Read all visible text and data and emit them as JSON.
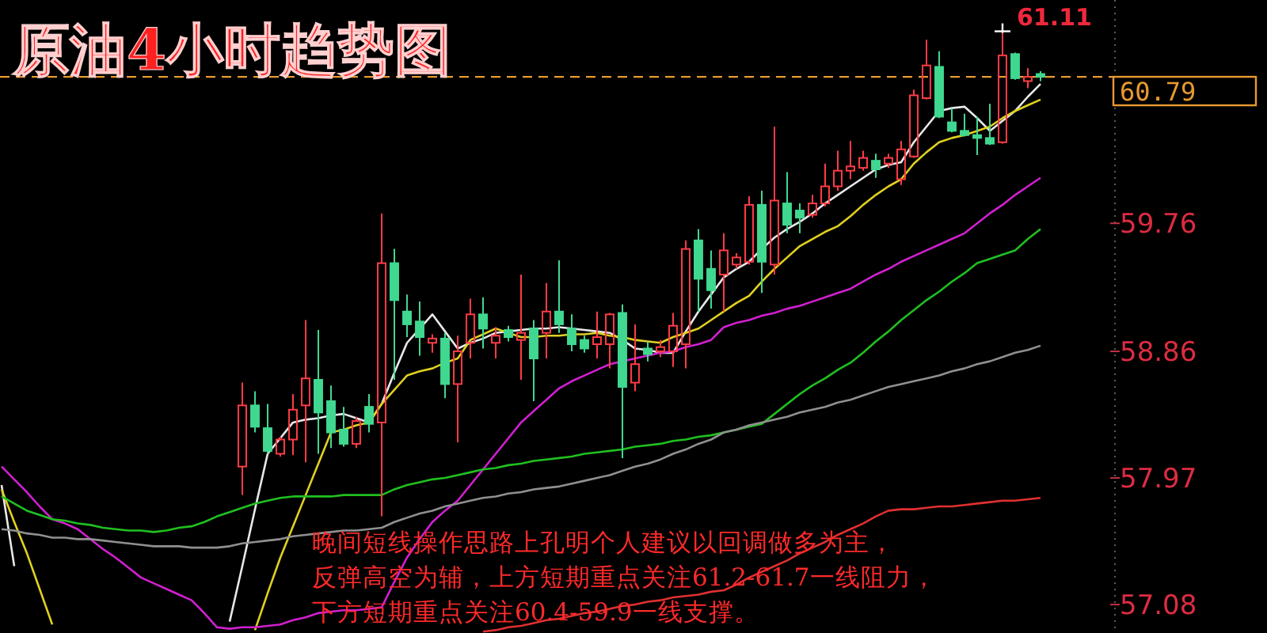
{
  "chart_data": {
    "type": "candlestick",
    "title": "原油4小时趋势图",
    "categories": [
      null,
      null,
      null,
      null,
      null,
      null,
      null,
      null,
      null,
      null,
      null,
      null,
      null,
      null,
      null,
      null,
      null,
      null,
      null,
      null,
      null,
      null,
      null,
      null,
      null,
      null,
      null,
      null,
      null,
      null,
      null,
      null,
      null,
      null,
      null,
      null,
      null,
      null,
      null,
      null,
      null,
      null,
      null,
      null,
      null,
      null,
      null,
      null,
      null,
      null,
      null,
      null,
      null,
      null,
      null,
      null,
      null,
      null,
      null,
      null,
      null,
      null,
      null,
      null,
      null,
      null,
      null,
      null,
      null,
      null,
      null,
      null,
      null,
      null,
      null,
      null,
      null,
      null,
      null,
      null,
      null,
      null,
      null
    ],
    "ohlc": [
      null,
      null,
      null,
      null,
      null,
      null,
      null,
      null,
      null,
      null,
      null,
      null,
      null,
      null,
      null,
      null,
      null,
      null,
      null,
      [
        58.05,
        58.64,
        57.85,
        58.48
      ],
      [
        58.48,
        58.58,
        58.29,
        58.33
      ],
      [
        58.32,
        58.49,
        58.14,
        58.16
      ],
      [
        58.14,
        58.26,
        58.12,
        58.24
      ],
      [
        58.24,
        58.56,
        58.13,
        58.45
      ],
      [
        58.48,
        59.08,
        58.08,
        58.67
      ],
      [
        58.66,
        59.01,
        58.14,
        58.43
      ],
      [
        58.51,
        58.62,
        58.18,
        58.29
      ],
      [
        58.31,
        58.47,
        58.19,
        58.21
      ],
      [
        58.21,
        58.4,
        58.18,
        58.37
      ],
      [
        58.47,
        58.56,
        58.29,
        58.35
      ],
      [
        58.36,
        59.83,
        57.7,
        59.48
      ],
      [
        59.48,
        59.58,
        58.66,
        59.22
      ],
      [
        59.14,
        59.26,
        58.96,
        59.05
      ],
      [
        59.07,
        59.21,
        58.83,
        58.96
      ],
      [
        58.92,
        58.98,
        58.85,
        58.95
      ],
      [
        58.95,
        58.99,
        58.53,
        58.63
      ],
      [
        58.63,
        58.97,
        58.22,
        58.86
      ],
      [
        58.92,
        59.23,
        58.81,
        59.12
      ],
      [
        59.12,
        59.24,
        58.88,
        59.02
      ],
      [
        58.92,
        59.03,
        58.81,
        58.97
      ],
      [
        59.01,
        59.04,
        58.93,
        58.96
      ],
      [
        58.94,
        59.4,
        58.66,
        58.99
      ],
      [
        59.02,
        59.08,
        58.51,
        58.81
      ],
      [
        58.99,
        59.34,
        58.81,
        59.14
      ],
      [
        59.14,
        59.5,
        58.99,
        59.05
      ],
      [
        59.02,
        59.12,
        58.86,
        58.91
      ],
      [
        58.94,
        58.97,
        58.85,
        58.88
      ],
      [
        58.91,
        59.14,
        58.81,
        58.96
      ],
      [
        58.91,
        59.13,
        58.74,
        59.12
      ],
      [
        59.13,
        59.19,
        58.11,
        58.61
      ],
      [
        58.64,
        59.05,
        58.58,
        58.77
      ],
      [
        58.88,
        58.93,
        58.79,
        58.84
      ],
      [
        58.86,
        58.94,
        58.82,
        58.89
      ],
      [
        58.86,
        59.13,
        58.75,
        59.04
      ],
      [
        58.91,
        59.64,
        58.74,
        59.58
      ],
      [
        59.64,
        59.72,
        59.14,
        59.37
      ],
      [
        59.44,
        59.57,
        59.16,
        59.29
      ],
      [
        59.4,
        59.69,
        59.14,
        59.57
      ],
      [
        59.47,
        59.55,
        59.44,
        59.52
      ],
      [
        59.49,
        59.95,
        59.47,
        59.89
      ],
      [
        59.89,
        59.99,
        59.27,
        59.49
      ],
      [
        59.47,
        60.44,
        59.4,
        59.92
      ],
      [
        59.9,
        60.12,
        59.69,
        59.75
      ],
      [
        59.85,
        59.9,
        59.69,
        59.8
      ],
      [
        59.82,
        59.96,
        59.8,
        59.9
      ],
      [
        59.9,
        60.18,
        59.88,
        60.02
      ],
      [
        60.02,
        60.27,
        59.99,
        60.13
      ],
      [
        60.13,
        60.34,
        60.07,
        60.16
      ],
      [
        60.15,
        60.27,
        60.13,
        60.22
      ],
      [
        60.2,
        60.25,
        60.08,
        60.14
      ],
      [
        60.18,
        60.25,
        60.15,
        60.22
      ],
      [
        60.07,
        60.34,
        60.03,
        60.28
      ],
      [
        60.23,
        60.7,
        60.22,
        60.66
      ],
      [
        60.64,
        61.05,
        60.63,
        60.87
      ],
      [
        60.86,
        60.97,
        60.5,
        60.51
      ],
      [
        60.47,
        60.57,
        60.4,
        60.41
      ],
      [
        60.41,
        60.53,
        60.37,
        60.38
      ],
      [
        60.38,
        60.51,
        60.24,
        60.36
      ],
      [
        60.36,
        60.6,
        60.31,
        60.32
      ],
      [
        60.33,
        61.11,
        60.32,
        60.94
      ],
      [
        60.95,
        60.96,
        60.77,
        60.78
      ],
      [
        60.76,
        60.85,
        60.71,
        60.79
      ],
      [
        60.81,
        60.83,
        60.76,
        60.79
      ]
    ],
    "colors": [
      null,
      null,
      null,
      null,
      null,
      null,
      null,
      null,
      null,
      null,
      null,
      null,
      null,
      null,
      null,
      null,
      null,
      null,
      null,
      "#ff3c46",
      "#40d890",
      "#40d890",
      "#ff3c46",
      "#ff3c46",
      "#ff3c46",
      "#40d890",
      "#40d890",
      "#40d890",
      "#ff3c46",
      "#40d890",
      "#ff3c46",
      "#40d890",
      "#40d890",
      "#40d890",
      "#ff3c46",
      "#40d890",
      "#ff3c46",
      "#ff3c46",
      "#40d890",
      "#ff3c46",
      "#40d890",
      "#ff3c46",
      "#40d890",
      "#ff3c46",
      "#40d890",
      "#40d890",
      "#40d890",
      "#ff3c46",
      "#ff3c46",
      "#40d890",
      "#ff3c46",
      "#40d890",
      "#ff3c46",
      "#ff3c46",
      "#ff3c46",
      "#40d890",
      "#40d890",
      "#ff3c46",
      "#ff3c46",
      "#ff3c46",
      "#40d890",
      "#ff3c46",
      "#40d890",
      "#40d890",
      "#ff3c46",
      "#ff3c46",
      "#ff3c46",
      "#ff3c46",
      "#ff3c46",
      "#40d890",
      "#ff3c46",
      "#ff3c46",
      "#ff3c46",
      "#ff3c46",
      "#40d890",
      "#40d890",
      "#40d890",
      "#40d890",
      "#40d890",
      "#ff3c46",
      "#40d890",
      "#ff3c46",
      "#40d890"
    ],
    "series": [
      {
        "type": "line",
        "color": "#e8e8e8",
        "values": [
          57.92,
          57.35,
          null,
          null,
          null,
          null,
          null,
          null,
          null,
          null,
          null,
          null,
          null,
          null,
          null,
          null,
          null,
          null,
          56.96,
          57.35,
          57.75,
          58.14,
          58.25,
          58.36,
          58.38,
          58.39,
          58.41,
          58.42,
          58.39,
          58.36,
          58.49,
          58.71,
          58.92,
          59.02,
          59.12,
          59.0,
          58.88,
          58.92,
          58.95,
          58.99,
          59.0,
          59.01,
          59.02,
          59.02,
          59.03,
          59.02,
          59.01,
          59.0,
          58.99,
          58.94,
          58.88,
          58.87,
          58.85,
          58.85,
          59.0,
          59.14,
          59.26,
          59.38,
          59.44,
          59.49,
          59.58,
          59.66,
          59.72,
          59.77,
          59.83,
          59.9,
          59.96,
          60.02,
          60.08,
          60.14,
          60.17,
          60.19,
          60.33,
          60.44,
          60.55,
          60.57,
          60.58,
          60.5,
          60.41,
          60.48,
          60.55,
          60.65,
          60.74
        ]
      },
      {
        "type": "line",
        "color": "#e0d020",
        "values": [
          57.89,
          57.66,
          57.44,
          57.19,
          56.94,
          null,
          null,
          null,
          null,
          null,
          null,
          null,
          null,
          null,
          null,
          null,
          null,
          null,
          null,
          null,
          56.9,
          57.16,
          57.41,
          57.63,
          57.85,
          58.07,
          58.29,
          58.31,
          58.34,
          58.36,
          58.49,
          58.59,
          58.69,
          58.72,
          58.74,
          58.78,
          58.81,
          58.94,
          58.98,
          59.02,
          58.99,
          58.96,
          58.96,
          58.97,
          58.97,
          58.98,
          58.98,
          58.99,
          58.97,
          58.96,
          58.94,
          58.93,
          58.92,
          58.96,
          58.99,
          59.02,
          59.08,
          59.14,
          59.2,
          59.25,
          59.35,
          59.44,
          59.52,
          59.6,
          59.65,
          59.7,
          59.74,
          59.81,
          59.89,
          59.96,
          60.02,
          60.07,
          60.18,
          60.26,
          60.33,
          60.36,
          60.38,
          60.41,
          60.44,
          60.5,
          60.55,
          60.59,
          60.63
        ]
      },
      {
        "type": "line",
        "color": "#d020d0",
        "values": [
          58.05,
          57.96,
          57.87,
          57.77,
          57.68,
          57.65,
          57.61,
          57.54,
          57.47,
          57.41,
          57.34,
          57.27,
          57.23,
          57.19,
          57.15,
          57.11,
          57.02,
          56.92,
          56.91,
          56.92,
          56.92,
          56.93,
          56.94,
          56.97,
          56.99,
          57.02,
          57.03,
          57.04,
          57.04,
          57.05,
          57.06,
          57.24,
          57.41,
          57.54,
          57.66,
          57.74,
          57.81,
          57.92,
          58.03,
          58.14,
          58.25,
          58.36,
          58.44,
          58.52,
          58.6,
          58.65,
          58.69,
          58.73,
          58.77,
          58.79,
          58.81,
          58.83,
          58.85,
          58.86,
          58.89,
          58.91,
          58.94,
          59.03,
          59.06,
          59.08,
          59.11,
          59.13,
          59.16,
          59.18,
          59.21,
          59.24,
          59.27,
          59.3,
          59.35,
          59.4,
          59.44,
          59.49,
          59.53,
          59.57,
          59.61,
          59.65,
          59.69,
          59.76,
          59.83,
          59.89,
          59.96,
          60.02,
          60.08
        ]
      },
      {
        "type": "line",
        "color": "#20c020",
        "values": [
          57.84,
          57.79,
          57.74,
          57.71,
          57.68,
          57.67,
          57.65,
          57.64,
          57.62,
          57.61,
          57.6,
          57.6,
          57.59,
          57.6,
          57.62,
          57.63,
          57.66,
          57.7,
          57.73,
          57.76,
          57.79,
          57.81,
          57.83,
          57.84,
          57.84,
          57.84,
          57.84,
          57.85,
          57.85,
          57.85,
          57.85,
          57.89,
          57.92,
          57.94,
          57.96,
          57.97,
          57.99,
          58.01,
          58.03,
          58.04,
          58.06,
          58.07,
          58.09,
          58.1,
          58.11,
          58.12,
          58.14,
          58.15,
          58.16,
          58.17,
          58.19,
          58.2,
          58.21,
          58.23,
          58.24,
          58.26,
          58.27,
          58.29,
          58.31,
          58.33,
          58.35,
          58.42,
          58.49,
          58.56,
          58.62,
          58.67,
          58.73,
          58.78,
          58.85,
          58.93,
          59.0,
          59.08,
          59.15,
          59.22,
          59.28,
          59.35,
          59.41,
          59.48,
          59.51,
          59.54,
          59.57,
          59.65,
          59.72
        ]
      },
      {
        "type": "line",
        "color": "#909090",
        "values": [
          57.61,
          57.6,
          57.58,
          57.57,
          57.55,
          57.55,
          57.54,
          57.54,
          57.53,
          57.52,
          57.51,
          57.5,
          57.49,
          57.49,
          57.49,
          57.48,
          57.48,
          57.48,
          57.49,
          57.51,
          57.52,
          57.53,
          57.54,
          57.56,
          57.57,
          57.58,
          57.59,
          57.6,
          57.6,
          57.61,
          57.62,
          57.66,
          57.69,
          57.72,
          57.74,
          57.77,
          57.79,
          57.81,
          57.83,
          57.84,
          57.86,
          57.87,
          57.89,
          57.9,
          57.91,
          57.93,
          57.95,
          57.97,
          57.99,
          58.02,
          58.05,
          58.07,
          58.1,
          58.14,
          58.17,
          58.21,
          58.24,
          58.29,
          58.31,
          58.34,
          58.36,
          58.38,
          58.4,
          58.43,
          58.45,
          58.47,
          58.5,
          58.52,
          58.55,
          58.58,
          58.61,
          58.63,
          58.65,
          58.67,
          58.69,
          58.72,
          58.74,
          58.77,
          58.79,
          58.82,
          58.85,
          58.87,
          58.9
        ]
      },
      {
        "type": "line",
        "color": "#e03030",
        "values": [
          null,
          null,
          null,
          null,
          null,
          null,
          null,
          null,
          null,
          null,
          null,
          null,
          null,
          null,
          null,
          null,
          null,
          null,
          null,
          null,
          null,
          null,
          null,
          null,
          null,
          null,
          null,
          null,
          null,
          null,
          null,
          null,
          null,
          null,
          null,
          null,
          null,
          null,
          56.89,
          56.9,
          56.92,
          56.93,
          56.95,
          56.97,
          56.98,
          57.0,
          57.02,
          57.03,
          57.05,
          57.07,
          57.08,
          57.1,
          57.11,
          57.13,
          57.14,
          57.15,
          57.17,
          57.18,
          57.22,
          57.27,
          57.31,
          57.35,
          57.39,
          57.44,
          57.48,
          57.52,
          57.57,
          57.61,
          57.65,
          57.7,
          57.74,
          57.75,
          57.75,
          57.76,
          57.77,
          57.77,
          57.78,
          57.79,
          57.8,
          57.81,
          57.81,
          57.82,
          57.83
        ]
      }
    ],
    "ylim": [
      56.88,
      61.33
    ],
    "yticks": [
      59.76,
      58.86,
      57.97,
      57.08
    ],
    "ref_lines": [
      {
        "axis": "y",
        "value": 60.79,
        "label": "60.79",
        "color": "#e89a30",
        "line_style": "dashed"
      }
    ],
    "annotations": [
      "61.11",
      "晚间短线操作思路上孔明个人建议以回调做多为主，",
      "反弹高空为辅，上方短期重点关注61.2-61.7一线阻力，",
      "下方短期重点关注60.4-59.9一线支撑。"
    ],
    "tick_labels": "y"
  }
}
